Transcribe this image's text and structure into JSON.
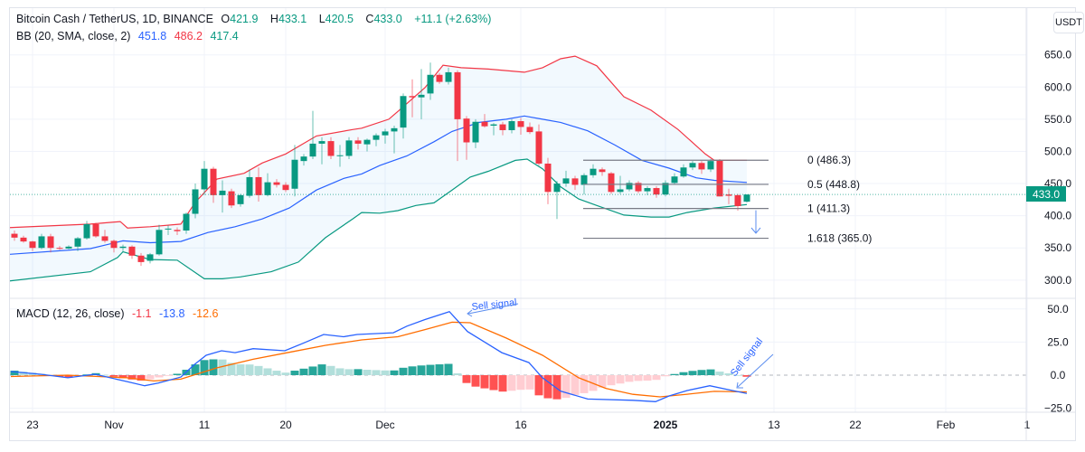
{
  "header": {
    "symbol": "Bitcoin Cash / TetherUS, 1D, BINANCE",
    "open_label": "O",
    "open": "421.9",
    "high_label": "H",
    "high": "433.1",
    "low_label": "L",
    "low": "420.5",
    "close_label": "C",
    "close": "433.0",
    "change": "+11.1 (+2.63%)",
    "bb_label": "BB (20, SMA, close, 2)",
    "bb_basis": "451.8",
    "bb_upper": "486.2",
    "bb_lower": "417.4",
    "currency_button": "USDT",
    "last_price": "433.0"
  },
  "macd_legend": {
    "label": "MACD (12, 26, close)",
    "hist": "-1.1",
    "macd": "-13.8",
    "signal": "-12.6"
  },
  "colors": {
    "up": "#089981",
    "down": "#f23645",
    "basis": "#2962ff",
    "upper": "#f23645",
    "lower": "#089981",
    "macd": "#2962ff",
    "signal": "#ff6d00"
  },
  "chart_data": [
    {
      "type": "candlestick",
      "title": "Bitcoin Cash / TetherUS, 1D, BINANCE",
      "ylim": [
        280,
        660
      ],
      "y_ticks": [
        "650.0",
        "600.0",
        "550.0",
        "500.0",
        "450.0",
        "400.0",
        "350.0",
        "300.0"
      ],
      "y_tick_values": [
        650,
        600,
        550,
        500,
        450,
        400,
        350,
        300
      ],
      "x_ticks": [
        {
          "label": "23",
          "day": 2
        },
        {
          "label": "Nov",
          "day": 11
        },
        {
          "label": "11",
          "day": 21
        },
        {
          "label": "20",
          "day": 30
        },
        {
          "label": "Dec",
          "day": 41
        },
        {
          "label": "16",
          "day": 56
        },
        {
          "label": "2025",
          "day": 72
        },
        {
          "label": "13",
          "day": 84
        },
        {
          "label": "22",
          "day": 93
        },
        {
          "label": "Feb",
          "day": 103
        },
        {
          "label": "1",
          "day": 112
        }
      ],
      "first_day": "Oct 21",
      "last_day": "Jan 10",
      "ohlc": [
        [
          372,
          377,
          361,
          366
        ],
        [
          366,
          369,
          358,
          360
        ],
        [
          360,
          361,
          345,
          350
        ],
        [
          350,
          372,
          348,
          368
        ],
        [
          368,
          372,
          343,
          350
        ],
        [
          350,
          353,
          347,
          349
        ],
        [
          349,
          354,
          348,
          352
        ],
        [
          352,
          367,
          345,
          365
        ],
        [
          365,
          392,
          363,
          387
        ],
        [
          387,
          389,
          366,
          368
        ],
        [
          368,
          378,
          358,
          361
        ],
        [
          361,
          363,
          343,
          350
        ],
        [
          350,
          355,
          345,
          352
        ],
        [
          352,
          354,
          333,
          338
        ],
        [
          338,
          342,
          322,
          328
        ],
        [
          330,
          342,
          326,
          340
        ],
        [
          340,
          386,
          338,
          378
        ],
        [
          379,
          385,
          370,
          380
        ],
        [
          378,
          382,
          370,
          376
        ],
        [
          377,
          405,
          372,
          403
        ],
        [
          403,
          450,
          396,
          441
        ],
        [
          441,
          485,
          432,
          473
        ],
        [
          473,
          476,
          420,
          432
        ],
        [
          432,
          455,
          405,
          439
        ],
        [
          438,
          442,
          412,
          416
        ],
        [
          418,
          434,
          414,
          432
        ],
        [
          431,
          472,
          428,
          460
        ],
        [
          460,
          475,
          422,
          432
        ],
        [
          432,
          466,
          430,
          452
        ],
        [
          452,
          457,
          444,
          448
        ],
        [
          448,
          452,
          437,
          440
        ],
        [
          442,
          510,
          430,
          487
        ],
        [
          485,
          496,
          478,
          492
        ],
        [
          492,
          563,
          488,
          512
        ],
        [
          512,
          522,
          480,
          516
        ],
        [
          516,
          522,
          488,
          493
        ],
        [
          494,
          510,
          476,
          494
        ],
        [
          493,
          522,
          488,
          517
        ],
        [
          517,
          522,
          503,
          512
        ],
        [
          511,
          520,
          500,
          518
        ],
        [
          518,
          528,
          508,
          525
        ],
        [
          525,
          535,
          512,
          531
        ],
        [
          531,
          540,
          497,
          536
        ],
        [
          537,
          590,
          520,
          586
        ],
        [
          586,
          612,
          553,
          584
        ],
        [
          584,
          628,
          550,
          588
        ],
        [
          590,
          638,
          580,
          619
        ],
        [
          619,
          622,
          605,
          608
        ],
        [
          608,
          630,
          604,
          623
        ],
        [
          623,
          626,
          485,
          550
        ],
        [
          551,
          555,
          487,
          514
        ],
        [
          514,
          550,
          505,
          546
        ],
        [
          546,
          558,
          537,
          539
        ],
        [
          540,
          544,
          525,
          542
        ],
        [
          542,
          546,
          525,
          533
        ],
        [
          533,
          550,
          528,
          547
        ],
        [
          547,
          552,
          526,
          538
        ],
        [
          538,
          545,
          527,
          530
        ],
        [
          531,
          542,
          478,
          481
        ],
        [
          481,
          490,
          418,
          437
        ],
        [
          437,
          454,
          395,
          450
        ],
        [
          450,
          470,
          445,
          458
        ],
        [
          458,
          462,
          440,
          448
        ],
        [
          448,
          466,
          433,
          463
        ],
        [
          463,
          480,
          459,
          473
        ],
        [
          472,
          475,
          462,
          468
        ],
        [
          466,
          468,
          434,
          437
        ],
        [
          437,
          462,
          434,
          441
        ],
        [
          441,
          455,
          438,
          451
        ],
        [
          451,
          454,
          435,
          438
        ],
        [
          438,
          446,
          432,
          443
        ],
        [
          443,
          446,
          428,
          433
        ],
        [
          433,
          455,
          430,
          451
        ],
        [
          451,
          466,
          449,
          461
        ],
        [
          461,
          480,
          459,
          475
        ],
        [
          475,
          485,
          471,
          482
        ],
        [
          482,
          485,
          465,
          472
        ],
        [
          472,
          488,
          468,
          485
        ],
        [
          486,
          488,
          430,
          430
        ],
        [
          433,
          442,
          418,
          431
        ],
        [
          432,
          434,
          408,
          415
        ],
        [
          421.9,
          433.1,
          420.5,
          433.0
        ]
      ],
      "bb_basis": [
        [
          -1.6,
          339
        ],
        [
          8.4,
          349
        ],
        [
          12,
          361
        ],
        [
          15,
          358
        ],
        [
          18.4,
          360
        ],
        [
          21.4,
          374
        ],
        [
          24.4,
          383
        ],
        [
          27.4,
          395
        ],
        [
          30.4,
          412
        ],
        [
          33.4,
          440
        ],
        [
          36.4,
          458
        ],
        [
          38.4,
          465
        ],
        [
          40.4,
          478
        ],
        [
          43.4,
          493
        ],
        [
          46.4,
          515
        ],
        [
          48.4,
          531
        ],
        [
          51.4,
          545
        ],
        [
          54.4,
          550
        ],
        [
          56.4,
          555
        ],
        [
          58.4,
          550
        ],
        [
          60.4,
          545
        ],
        [
          63.4,
          532
        ],
        [
          66.4,
          510
        ],
        [
          69.4,
          486
        ],
        [
          72.4,
          474
        ],
        [
          75.4,
          459
        ],
        [
          77.4,
          455
        ],
        [
          81,
          451.8
        ]
      ],
      "bb_upper": [
        [
          -1.6,
          381
        ],
        [
          8.4,
          387
        ],
        [
          11.7,
          391
        ],
        [
          12.5,
          381
        ],
        [
          15,
          383
        ],
        [
          18.4,
          387
        ],
        [
          20,
          421
        ],
        [
          22.4,
          457
        ],
        [
          25.4,
          466
        ],
        [
          27.4,
          482
        ],
        [
          30,
          496
        ],
        [
          33.4,
          524
        ],
        [
          37.4,
          534
        ],
        [
          38.4,
          536
        ],
        [
          41.4,
          550
        ],
        [
          42.4,
          562
        ],
        [
          45.4,
          599
        ],
        [
          47.4,
          634
        ],
        [
          49.4,
          630
        ],
        [
          52.4,
          628
        ],
        [
          56.4,
          623
        ],
        [
          58.4,
          630
        ],
        [
          60.4,
          644
        ],
        [
          62,
          648
        ],
        [
          64.4,
          633
        ],
        [
          67.4,
          585
        ],
        [
          70.4,
          564
        ],
        [
          73.4,
          534
        ],
        [
          76.4,
          496
        ],
        [
          77.4,
          486
        ],
        [
          81,
          486.2
        ]
      ],
      "bb_lower": [
        [
          -1.6,
          297
        ],
        [
          8.4,
          313
        ],
        [
          11.4,
          335
        ],
        [
          12,
          344
        ],
        [
          15,
          332
        ],
        [
          18,
          331
        ],
        [
          21,
          302
        ],
        [
          23,
          302
        ],
        [
          25,
          305
        ],
        [
          28.4,
          313
        ],
        [
          31.4,
          328
        ],
        [
          34.4,
          366
        ],
        [
          37.4,
          395
        ],
        [
          38.4,
          405
        ],
        [
          40.4,
          404
        ],
        [
          42.4,
          408
        ],
        [
          44.4,
          416
        ],
        [
          46.4,
          420
        ],
        [
          48.4,
          440
        ],
        [
          50.4,
          460
        ],
        [
          52.4,
          469
        ],
        [
          55.4,
          486
        ],
        [
          56.7,
          488
        ],
        [
          58.4,
          473
        ],
        [
          60.4,
          445
        ],
        [
          62.4,
          426
        ],
        [
          64.4,
          416
        ],
        [
          67.4,
          401
        ],
        [
          70.4,
          398
        ],
        [
          72.4,
          398
        ],
        [
          74.4,
          405
        ],
        [
          77.4,
          412
        ],
        [
          81,
          417.4
        ]
      ],
      "fib_levels": [
        {
          "ratio": "0",
          "value": 486.3,
          "label": "0 (486.3)"
        },
        {
          "ratio": "0.5",
          "value": 448.8,
          "label": "0.5 (448.8)"
        },
        {
          "ratio": "1",
          "value": 411.3,
          "label": "1 (411.3)"
        },
        {
          "ratio": "1.618",
          "value": 365.0,
          "label": "1.618 (365.0)"
        }
      ]
    },
    {
      "type": "line",
      "title": "MACD (12, 26, close)",
      "ylim": [
        -30,
        55
      ],
      "y_ticks": [
        "50.0",
        "25.0",
        "0.0",
        "−25.0"
      ],
      "y_tick_values": [
        50,
        25,
        0,
        -25
      ],
      "macd": [
        [
          -0.4,
          2.7
        ],
        [
          2.9,
          0.7
        ],
        [
          5.9,
          -2
        ],
        [
          8.9,
          0.7
        ],
        [
          12.4,
          -4.8
        ],
        [
          14.4,
          -8
        ],
        [
          15.9,
          -6
        ],
        [
          18.4,
          -1.4
        ],
        [
          19.9,
          8
        ],
        [
          21.2,
          15
        ],
        [
          22.9,
          18.4
        ],
        [
          24.4,
          17
        ],
        [
          26.4,
          20
        ],
        [
          29.9,
          18.4
        ],
        [
          31.9,
          24
        ],
        [
          34.2,
          30.7
        ],
        [
          36.4,
          29
        ],
        [
          37.9,
          30.7
        ],
        [
          41.9,
          32
        ],
        [
          43.4,
          37
        ],
        [
          45.4,
          42
        ],
        [
          48.1,
          48
        ],
        [
          50.1,
          33
        ],
        [
          53.9,
          17
        ],
        [
          56.9,
          9.5
        ],
        [
          58.4,
          -2
        ],
        [
          60.4,
          -12
        ],
        [
          63.4,
          -18
        ],
        [
          68.4,
          -19
        ],
        [
          70.9,
          -20
        ],
        [
          72.4,
          -15.7
        ],
        [
          74.4,
          -11.6
        ],
        [
          76.9,
          -8
        ],
        [
          79.4,
          -11.6
        ],
        [
          81,
          -13.8
        ]
      ],
      "signal": [
        [
          -0.4,
          -1
        ],
        [
          5.9,
          0
        ],
        [
          12.4,
          -2
        ],
        [
          15.4,
          -4.4
        ],
        [
          18.4,
          -3
        ],
        [
          22.4,
          5.5
        ],
        [
          26.4,
          12
        ],
        [
          30.4,
          17.3
        ],
        [
          34.4,
          22.5
        ],
        [
          38.4,
          26.6
        ],
        [
          42.4,
          29
        ],
        [
          45.4,
          34.4
        ],
        [
          48.4,
          40
        ],
        [
          50.4,
          39.6
        ],
        [
          54.4,
          28
        ],
        [
          58.4,
          15
        ],
        [
          62.4,
          -2
        ],
        [
          65.4,
          -10
        ],
        [
          68.4,
          -14.5
        ],
        [
          71.4,
          -16.4
        ],
        [
          74.4,
          -14.4
        ],
        [
          77.4,
          -12.2
        ],
        [
          81,
          -12.6
        ]
      ],
      "histogram": "macd minus signal",
      "annotations": [
        {
          "text": "Sell signal",
          "day": 48.5
        },
        {
          "text": "Sell signal",
          "day": 80
        }
      ]
    }
  ]
}
